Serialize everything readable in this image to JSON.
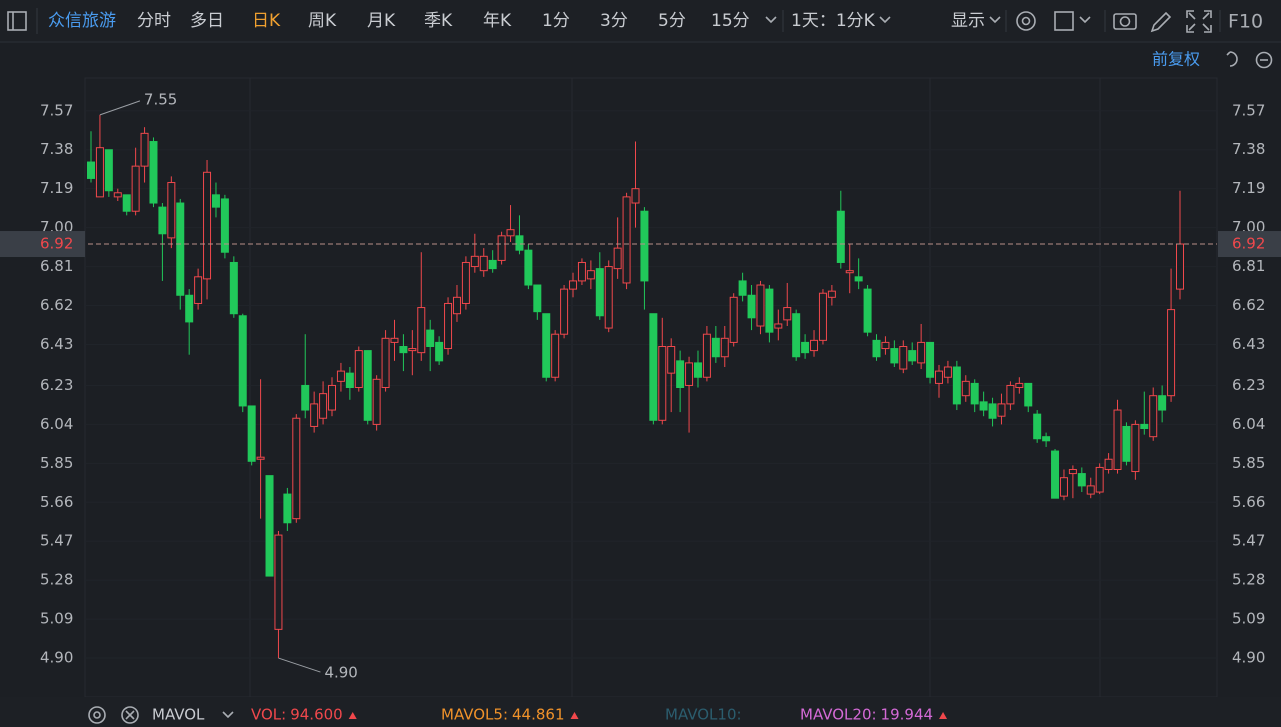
{
  "toolbar": {
    "stock_name": "众信旅游",
    "periods": [
      "分时",
      "多日",
      "日K",
      "周K",
      "月K",
      "季K",
      "年K",
      "1分",
      "3分",
      "5分",
      "15分"
    ],
    "active_period_index": 2,
    "range_selector": "1天：1分K",
    "display_menu": "显示",
    "f10": "F10"
  },
  "adjust_mode": "前复权",
  "chart_data": {
    "type": "candlestick",
    "up_color": "#f0484c",
    "down_color": "#21c85a",
    "open": [
      7.32,
      7.15,
      7.38,
      7.15,
      7.16,
      7.08,
      7.3,
      7.42,
      7.1,
      6.95,
      7.12,
      6.67,
      6.63,
      6.75,
      7.16,
      7.14,
      6.83,
      6.57,
      6.13,
      5.87,
      5.79,
      5.04,
      5.7,
      5.58,
      6.23,
      6.03,
      6.07,
      6.11,
      6.25,
      6.29,
      6.22,
      6.4,
      6.04,
      6.22,
      6.44,
      6.42,
      6.4,
      6.39,
      6.5,
      6.44,
      6.41,
      6.58,
      6.63,
      6.81,
      6.79,
      6.84,
      6.84,
      6.96,
      6.96,
      6.89,
      6.72,
      6.58,
      6.27,
      6.48,
      6.7,
      6.74,
      6.75,
      6.8,
      6.51,
      6.8,
      6.73,
      7.12,
      7.08,
      6.58,
      6.06,
      6.29,
      6.35,
      6.23,
      6.34,
      6.27,
      6.46,
      6.37,
      6.44,
      6.74,
      6.67,
      6.52,
      6.7,
      6.51,
      6.55,
      6.58,
      6.44,
      6.4,
      6.45,
      6.66,
      7.08,
      6.78,
      6.76,
      6.7,
      6.45,
      6.41,
      6.41,
      6.31,
      6.4,
      6.34,
      6.44,
      6.24,
      6.27,
      6.32,
      6.18,
      6.24,
      6.15,
      6.14,
      6.08,
      6.14,
      6.22,
      6.24,
      6.09,
      5.98,
      5.91,
      5.69,
      5.8,
      5.8,
      5.7,
      5.71,
      5.82,
      5.82,
      6.03,
      5.81,
      6.04,
      5.98,
      6.18,
      6.18,
      6.7
    ],
    "high": [
      7.47,
      7.55,
      7.38,
      7.19,
      7.16,
      7.39,
      7.49,
      7.44,
      7.12,
      7.25,
      7.14,
      6.7,
      6.8,
      7.33,
      7.22,
      7.16,
      6.86,
      6.58,
      6.13,
      6.26,
      5.79,
      5.52,
      5.73,
      6.09,
      6.48,
      6.2,
      6.25,
      6.27,
      6.34,
      6.32,
      6.42,
      6.4,
      6.28,
      6.5,
      6.55,
      6.48,
      6.5,
      6.88,
      6.55,
      6.47,
      6.66,
      6.72,
      6.86,
      6.97,
      6.9,
      6.89,
      6.98,
      7.11,
      7.06,
      6.92,
      6.72,
      6.58,
      6.5,
      6.72,
      6.78,
      6.85,
      6.84,
      6.88,
      6.84,
      7.05,
      7.17,
      7.42,
      7.1,
      6.58,
      6.56,
      6.46,
      6.4,
      6.37,
      6.4,
      6.52,
      6.52,
      6.52,
      6.68,
      6.78,
      6.72,
      6.74,
      6.72,
      6.6,
      6.73,
      6.6,
      6.48,
      6.5,
      6.7,
      6.72,
      7.18,
      6.92,
      6.85,
      6.72,
      6.48,
      6.47,
      6.45,
      6.45,
      6.44,
      6.53,
      6.44,
      6.33,
      6.35,
      6.35,
      6.28,
      6.26,
      6.2,
      6.17,
      6.19,
      6.25,
      6.27,
      6.24,
      6.11,
      6.0,
      5.92,
      5.82,
      5.84,
      5.83,
      5.78,
      5.85,
      5.9,
      6.16,
      6.05,
      6.06,
      6.2,
      6.22,
      6.23,
      6.8,
      7.18
    ],
    "low": [
      7.22,
      7.15,
      7.15,
      7.13,
      7.06,
      7.06,
      7.22,
      7.1,
      6.74,
      6.9,
      6.6,
      6.38,
      6.6,
      6.65,
      7.05,
      6.85,
      6.56,
      6.1,
      5.84,
      5.58,
      5.3,
      4.9,
      5.52,
      5.56,
      6.07,
      6.0,
      6.04,
      6.08,
      6.2,
      6.16,
      6.2,
      6.04,
      6.01,
      6.2,
      6.35,
      6.3,
      6.28,
      6.35,
      6.3,
      6.33,
      6.38,
      6.54,
      6.6,
      6.78,
      6.76,
      6.78,
      6.82,
      6.93,
      6.87,
      6.7,
      6.55,
      6.25,
      6.25,
      6.46,
      6.66,
      6.72,
      6.7,
      6.55,
      6.49,
      6.75,
      6.7,
      7.0,
      6.6,
      6.04,
      6.04,
      6.1,
      6.1,
      6.0,
      6.22,
      6.25,
      6.34,
      6.32,
      6.42,
      6.64,
      6.5,
      6.48,
      6.44,
      6.45,
      6.52,
      6.35,
      6.36,
      6.37,
      6.43,
      6.62,
      6.8,
      6.68,
      6.7,
      6.47,
      6.35,
      6.38,
      6.32,
      6.29,
      6.33,
      6.31,
      6.24,
      6.17,
      6.24,
      6.11,
      6.15,
      6.1,
      6.08,
      6.03,
      6.04,
      6.11,
      6.19,
      6.1,
      5.95,
      5.93,
      5.68,
      5.67,
      5.68,
      5.71,
      5.68,
      5.7,
      5.8,
      5.8,
      5.84,
      5.77,
      5.99,
      5.96,
      6.05,
      6.15,
      6.65
    ],
    "close": [
      7.24,
      7.39,
      7.18,
      7.17,
      7.08,
      7.3,
      7.46,
      7.12,
      6.97,
      7.22,
      6.67,
      6.54,
      6.76,
      7.27,
      7.1,
      6.88,
      6.58,
      6.13,
      5.86,
      5.88,
      5.3,
      5.5,
      5.56,
      6.07,
      6.11,
      6.14,
      6.19,
      6.23,
      6.3,
      6.22,
      6.4,
      6.06,
      6.26,
      6.46,
      6.46,
      6.39,
      6.41,
      6.61,
      6.42,
      6.35,
      6.63,
      6.66,
      6.83,
      6.86,
      6.86,
      6.8,
      6.96,
      6.99,
      6.89,
      6.72,
      6.59,
      6.27,
      6.48,
      6.7,
      6.74,
      6.83,
      6.79,
      6.57,
      6.81,
      6.9,
      7.15,
      7.19,
      6.74,
      6.06,
      6.42,
      6.42,
      6.22,
      6.34,
      6.27,
      6.48,
      6.37,
      6.46,
      6.66,
      6.67,
      6.56,
      6.72,
      6.49,
      6.53,
      6.61,
      6.37,
      6.39,
      6.45,
      6.68,
      6.69,
      6.83,
      6.79,
      6.74,
      6.49,
      6.37,
      6.44,
      6.34,
      6.42,
      6.35,
      6.44,
      6.27,
      6.3,
      6.32,
      6.14,
      6.25,
      6.14,
      6.11,
      6.07,
      6.14,
      6.23,
      6.24,
      6.13,
      5.97,
      5.96,
      5.68,
      5.78,
      5.82,
      5.74,
      5.74,
      5.83,
      5.87,
      6.11,
      5.86,
      6.04,
      6.02,
      6.18,
      6.11,
      6.6,
      6.92
    ],
    "ylim": [
      4.71,
      7.73
    ],
    "yticks": [
      7.57,
      7.38,
      7.19,
      {
        "value": 7,
        "label": "7.00"
      },
      6.81,
      6.62,
      6.43,
      6.23,
      6.04,
      5.85,
      5.66,
      5.47,
      5.28,
      5.09,
      {
        "value": 4.9,
        "label": "4.90"
      }
    ],
    "last_price": 6.92,
    "last_price_color": "#f0484c",
    "high_label": 7.55,
    "low_label": {
      "value": 4.9,
      "label": "4.90"
    }
  },
  "indicator_bar": {
    "name": "MAVOL",
    "items": [
      {
        "name": "VOL:",
        "value": 94.6,
        "label": "94.600",
        "color": "#f0484c"
      },
      {
        "name": "MAVOL5:",
        "value": 44.861,
        "label": "44.861",
        "color": "#f0922a"
      },
      {
        "name": "MAVOL10:",
        "color": "#2b5d6e"
      },
      {
        "name": "MAVOL20:",
        "value": 19.944,
        "label": "19.944",
        "color": "#d46ad6"
      }
    ]
  }
}
